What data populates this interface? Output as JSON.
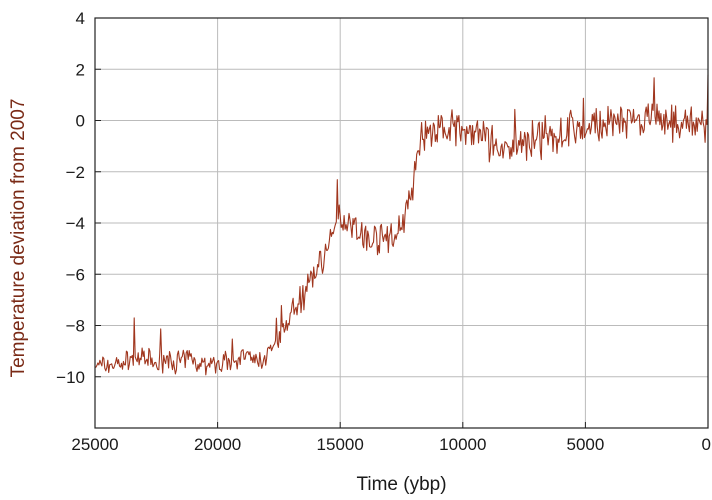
{
  "chart_data": {
    "type": "line",
    "xlabel": "Time (ybp)",
    "ylabel": "Temperature deviation from 2007",
    "xlim": [
      25000,
      0
    ],
    "ylim": [
      -12,
      4
    ],
    "x_ticks": [
      25000,
      20000,
      15000,
      10000,
      5000,
      0
    ],
    "x_tick_labels": [
      "25000",
      "20000",
      "15000",
      "10000",
      "5000",
      "0"
    ],
    "y_ticks": [
      -10,
      -8,
      -6,
      -4,
      -2,
      0,
      2,
      4
    ],
    "y_tick_labels": [
      "−10",
      "−8",
      "−6",
      "−4",
      "−2",
      "0",
      "2",
      "4"
    ],
    "grid": true,
    "colors": {
      "line": "#a0361e",
      "ylabel": "#7a2a16",
      "grid": "#bbbbbb",
      "axes": "#222222"
    },
    "series": [
      {
        "x": [
          25000,
          24500,
          24000,
          23500,
          23000,
          22500,
          22000,
          21500,
          21000,
          20500,
          20000,
          19500,
          19000,
          18500,
          18000,
          17500,
          17000,
          16500,
          16000,
          15500,
          15000,
          14500,
          14000,
          13500,
          13000,
          12500,
          12000,
          11700,
          11500,
          11000,
          10500,
          10000,
          9500,
          9000,
          8500,
          8000,
          7500,
          7000,
          6500,
          6000,
          5500,
          5000,
          4500,
          4000,
          3500,
          3000,
          2500,
          2000,
          1500,
          1000,
          500,
          0
        ],
        "values": [
          -9.6,
          -9.5,
          -9.5,
          -9.3,
          -9.3,
          -9.5,
          -9.4,
          -9.4,
          -9.3,
          -9.5,
          -9.5,
          -9.3,
          -9.3,
          -9.4,
          -9.2,
          -8.7,
          -7.5,
          -6.8,
          -5.8,
          -5.0,
          -3.8,
          -4.0,
          -4.6,
          -4.6,
          -4.6,
          -4.2,
          -2.5,
          -0.6,
          -0.4,
          -0.4,
          -0.3,
          -0.4,
          -0.6,
          -0.8,
          -1.2,
          -1.0,
          -0.9,
          -0.8,
          -0.6,
          -0.5,
          -0.3,
          -0.4,
          -0.2,
          -0.2,
          0.0,
          -0.2,
          -0.1,
          0.0,
          -0.2,
          -0.1,
          -0.3,
          -0.1
        ],
        "noise_amplitude": 0.55
      }
    ]
  }
}
